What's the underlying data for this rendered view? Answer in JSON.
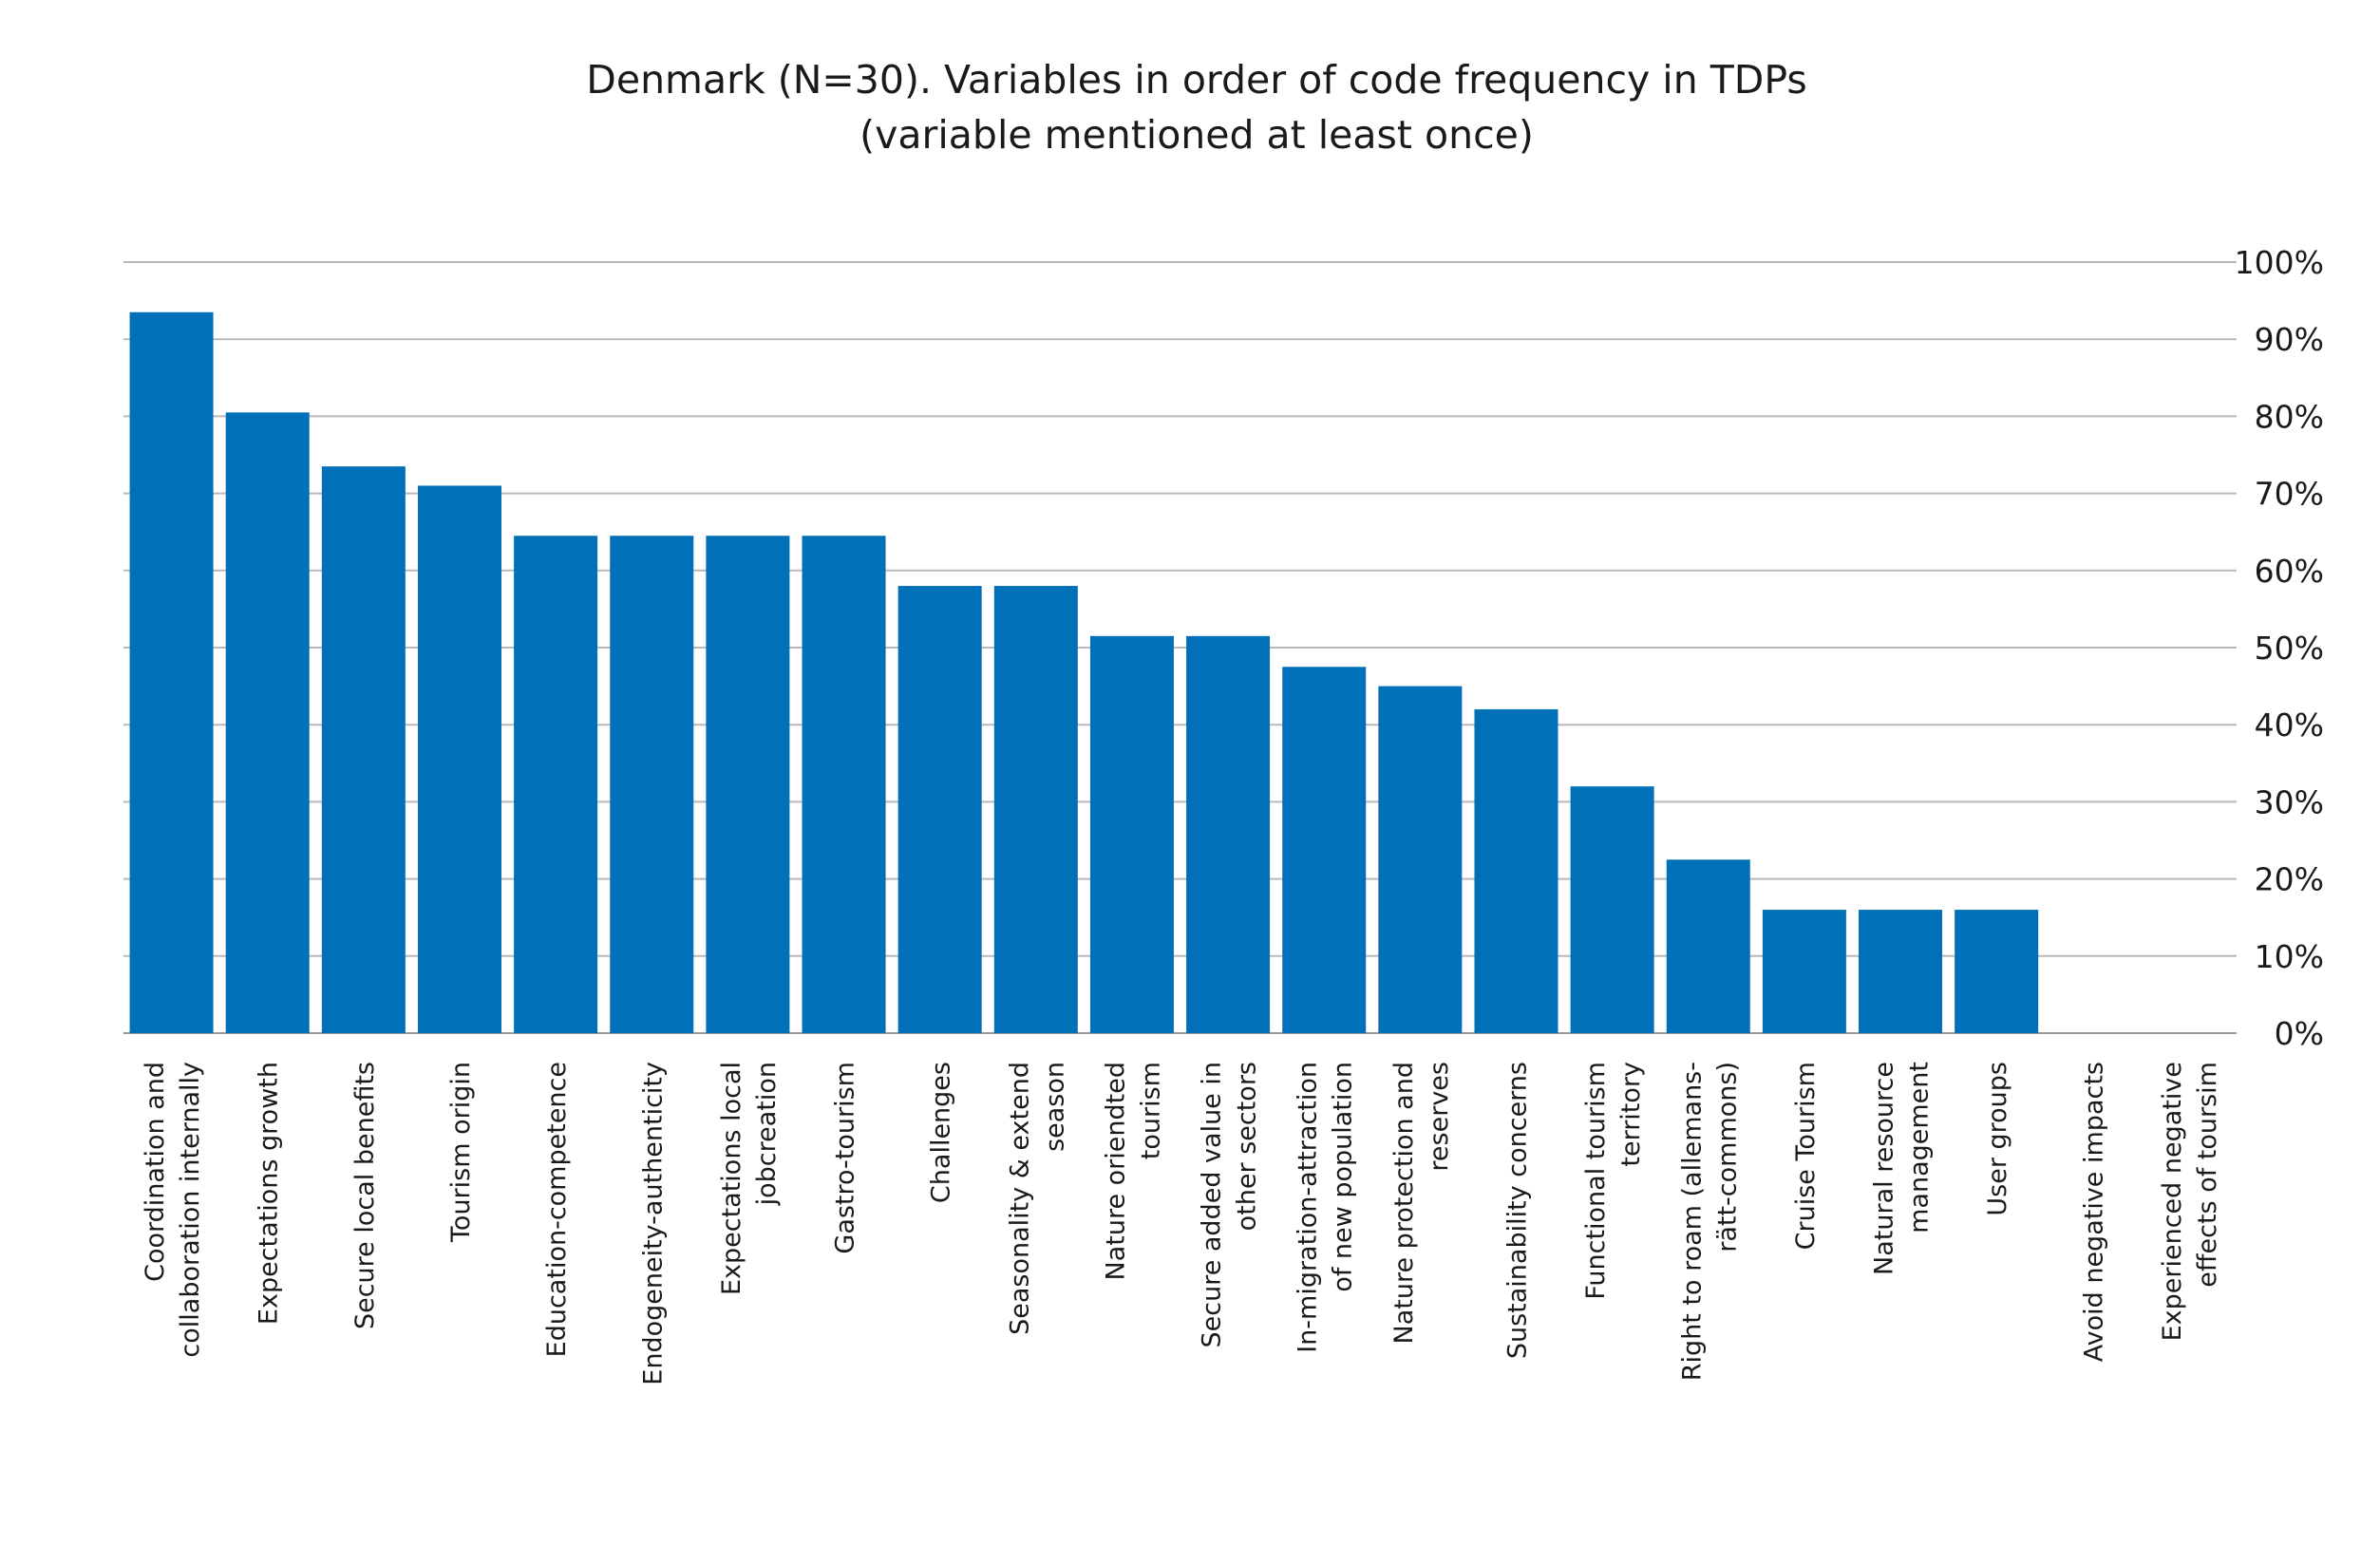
{
  "chart_data": {
    "type": "bar",
    "title": [
      "Denmark (N=30). Variables in order of code frequency in TDPs",
      "(variable mentioned at least once)"
    ],
    "xlabel": "",
    "ylabel": "",
    "y_axis_position": "right",
    "ylim": [
      0,
      100
    ],
    "y_ticks": [
      0,
      10,
      20,
      30,
      40,
      50,
      60,
      70,
      80,
      90,
      100
    ],
    "y_tick_labels": [
      "0%",
      "10%",
      "20%",
      "30%",
      "40%",
      "50%",
      "60%",
      "70%",
      "80%",
      "90%",
      "100%"
    ],
    "grid": true,
    "legend": "none",
    "bar_color": "#0070b8",
    "categories": [
      [
        "Coordination and",
        "collaboration internally"
      ],
      [
        "Expectations growth"
      ],
      [
        "Secure local benefits"
      ],
      [
        "Tourism origin"
      ],
      [
        "Education-competence"
      ],
      [
        "Endogeneity-authenticity"
      ],
      [
        "Expectations local",
        "jobcreation"
      ],
      [
        "Gastro-tourism"
      ],
      [
        "Challenges"
      ],
      [
        "Seasonality & extend",
        "season"
      ],
      [
        "Nature oriendted",
        "tourism"
      ],
      [
        "Secure added value in",
        "other sectors"
      ],
      [
        "In-migration-attraction",
        "of new population"
      ],
      [
        "Nature protection and",
        "reserves"
      ],
      [
        "Sustainability concerns"
      ],
      [
        "Functional tourism",
        "territory"
      ],
      [
        "Right to roam (allemans-",
        "rätt-commons)"
      ],
      [
        "Cruise Tourism"
      ],
      [
        "Natural resource",
        "management"
      ],
      [
        "User groups"
      ],
      [
        "Avoid negative impacts"
      ],
      [
        "Experienced negative",
        "effects of toursim"
      ]
    ],
    "values": [
      93.5,
      80.5,
      73.5,
      71,
      64.5,
      64.5,
      64.5,
      64.5,
      58,
      58,
      51.5,
      51.5,
      47.5,
      45,
      42,
      32,
      22.5,
      16,
      16,
      16,
      0,
      0
    ]
  }
}
